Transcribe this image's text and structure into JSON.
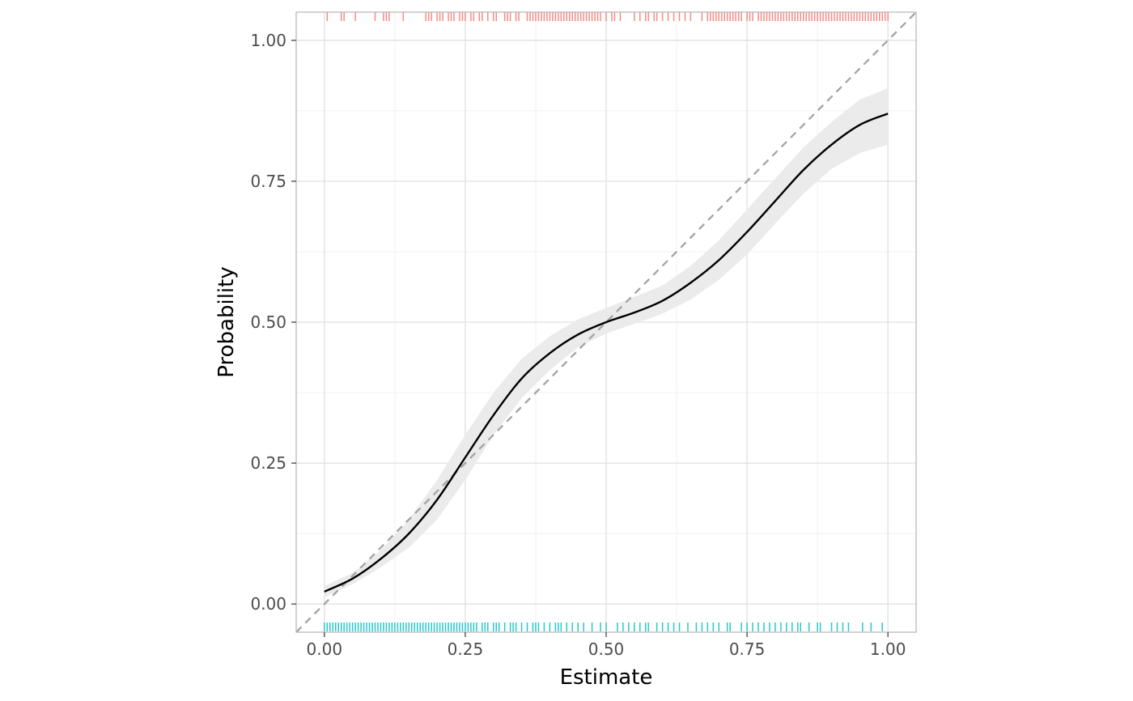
{
  "chart_data": {
    "type": "line",
    "xlabel": "Estimate",
    "ylabel": "Probability",
    "xlim": [
      -0.05,
      1.05
    ],
    "ylim": [
      -0.05,
      1.05
    ],
    "x_ticks": [
      0.0,
      0.25,
      0.5,
      0.75,
      1.0
    ],
    "x_tick_labels": [
      "0.00",
      "0.25",
      "0.50",
      "0.75",
      "1.00"
    ],
    "y_ticks": [
      0.0,
      0.25,
      0.5,
      0.75,
      1.0
    ],
    "y_tick_labels": [
      "0.00",
      "0.25",
      "0.50",
      "0.75",
      "1.00"
    ],
    "grid": true,
    "reference_line": {
      "from": [
        -0.05,
        -0.05
      ],
      "to": [
        1.05,
        1.05
      ],
      "style": "dashed",
      "color": "#a6a6a6"
    },
    "fit": {
      "color": "#000000",
      "x": [
        0.0,
        0.05,
        0.1,
        0.15,
        0.2,
        0.25,
        0.3,
        0.35,
        0.4,
        0.45,
        0.5,
        0.55,
        0.6,
        0.65,
        0.7,
        0.75,
        0.8,
        0.85,
        0.9,
        0.95,
        1.0
      ],
      "y": [
        0.022,
        0.045,
        0.08,
        0.125,
        0.185,
        0.26,
        0.335,
        0.4,
        0.445,
        0.478,
        0.5,
        0.517,
        0.538,
        0.57,
        0.61,
        0.66,
        0.715,
        0.77,
        0.815,
        0.85,
        0.87
      ],
      "lower": [
        0.012,
        0.035,
        0.065,
        0.1,
        0.15,
        0.22,
        0.3,
        0.365,
        0.415,
        0.455,
        0.48,
        0.497,
        0.515,
        0.54,
        0.575,
        0.62,
        0.675,
        0.728,
        0.772,
        0.8,
        0.815
      ],
      "upper": [
        0.032,
        0.055,
        0.095,
        0.15,
        0.22,
        0.3,
        0.375,
        0.435,
        0.475,
        0.505,
        0.525,
        0.545,
        0.565,
        0.6,
        0.645,
        0.7,
        0.755,
        0.81,
        0.855,
        0.895,
        0.915
      ],
      "band_color": "#ebebeb"
    },
    "rug_top": {
      "y_position": "top",
      "color": "#f8766d",
      "x": [
        0.005,
        0.03,
        0.035,
        0.055,
        0.09,
        0.105,
        0.11,
        0.115,
        0.14,
        0.18,
        0.185,
        0.19,
        0.2,
        0.205,
        0.21,
        0.22,
        0.225,
        0.23,
        0.24,
        0.245,
        0.25,
        0.26,
        0.265,
        0.275,
        0.28,
        0.29,
        0.3,
        0.305,
        0.32,
        0.325,
        0.33,
        0.34,
        0.345,
        0.36,
        0.365,
        0.37,
        0.375,
        0.38,
        0.385,
        0.39,
        0.395,
        0.4,
        0.405,
        0.41,
        0.415,
        0.42,
        0.425,
        0.43,
        0.435,
        0.44,
        0.445,
        0.45,
        0.455,
        0.46,
        0.465,
        0.47,
        0.475,
        0.48,
        0.485,
        0.49,
        0.5,
        0.51,
        0.515,
        0.525,
        0.55,
        0.56,
        0.57,
        0.575,
        0.585,
        0.59,
        0.6,
        0.61,
        0.62,
        0.63,
        0.64,
        0.65,
        0.67,
        0.68,
        0.685,
        0.69,
        0.695,
        0.7,
        0.705,
        0.71,
        0.715,
        0.72,
        0.725,
        0.73,
        0.735,
        0.74,
        0.75,
        0.755,
        0.76,
        0.77,
        0.775,
        0.78,
        0.785,
        0.79,
        0.795,
        0.8,
        0.805,
        0.81,
        0.815,
        0.82,
        0.825,
        0.83,
        0.835,
        0.84,
        0.845,
        0.85,
        0.855,
        0.86,
        0.865,
        0.87,
        0.875,
        0.88,
        0.885,
        0.89,
        0.895,
        0.9,
        0.905,
        0.91,
        0.915,
        0.92,
        0.925,
        0.93,
        0.935,
        0.94,
        0.945,
        0.95,
        0.955,
        0.96,
        0.965,
        0.97,
        0.975,
        0.98,
        0.985,
        0.99,
        0.995,
        1.0
      ]
    },
    "rug_bottom": {
      "y_position": "bottom",
      "color": "#00bfc4",
      "x": [
        0.0,
        0.005,
        0.01,
        0.015,
        0.02,
        0.025,
        0.03,
        0.035,
        0.04,
        0.045,
        0.05,
        0.055,
        0.06,
        0.065,
        0.07,
        0.075,
        0.08,
        0.085,
        0.09,
        0.095,
        0.1,
        0.105,
        0.11,
        0.115,
        0.12,
        0.125,
        0.13,
        0.135,
        0.14,
        0.145,
        0.15,
        0.155,
        0.16,
        0.165,
        0.17,
        0.175,
        0.18,
        0.185,
        0.19,
        0.195,
        0.2,
        0.205,
        0.21,
        0.215,
        0.22,
        0.225,
        0.23,
        0.235,
        0.24,
        0.245,
        0.25,
        0.255,
        0.26,
        0.265,
        0.27,
        0.28,
        0.285,
        0.29,
        0.3,
        0.305,
        0.31,
        0.32,
        0.33,
        0.335,
        0.34,
        0.35,
        0.36,
        0.37,
        0.375,
        0.38,
        0.39,
        0.4,
        0.41,
        0.415,
        0.42,
        0.43,
        0.44,
        0.45,
        0.46,
        0.475,
        0.49,
        0.5,
        0.52,
        0.53,
        0.54,
        0.55,
        0.56,
        0.57,
        0.575,
        0.59,
        0.6,
        0.61,
        0.62,
        0.63,
        0.645,
        0.66,
        0.67,
        0.68,
        0.69,
        0.7,
        0.715,
        0.72,
        0.74,
        0.75,
        0.76,
        0.77,
        0.78,
        0.79,
        0.8,
        0.81,
        0.82,
        0.83,
        0.84,
        0.845,
        0.86,
        0.875,
        0.88,
        0.9,
        0.91,
        0.92,
        0.93,
        0.955,
        0.97,
        0.99
      ]
    }
  }
}
